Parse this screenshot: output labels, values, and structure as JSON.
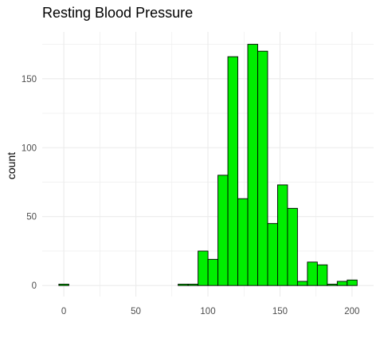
{
  "chart_data": {
    "type": "bar",
    "title": "Resting Blood Pressure",
    "xlabel": "",
    "ylabel": "count",
    "bin_width": 6.9,
    "bins": [
      {
        "start": -3.45,
        "end": 3.45,
        "count": 1
      },
      {
        "start": 79.35,
        "end": 86.25,
        "count": 1
      },
      {
        "start": 86.25,
        "end": 93.15,
        "count": 1
      },
      {
        "start": 93.15,
        "end": 100.05,
        "count": 25
      },
      {
        "start": 100.05,
        "end": 106.95,
        "count": 19
      },
      {
        "start": 106.95,
        "end": 113.85,
        "count": 80
      },
      {
        "start": 113.85,
        "end": 120.75,
        "count": 166
      },
      {
        "start": 120.75,
        "end": 127.65,
        "count": 63
      },
      {
        "start": 127.65,
        "end": 134.55,
        "count": 175
      },
      {
        "start": 134.55,
        "end": 141.45,
        "count": 170
      },
      {
        "start": 141.45,
        "end": 148.35,
        "count": 45
      },
      {
        "start": 148.35,
        "end": 155.25,
        "count": 73
      },
      {
        "start": 155.25,
        "end": 162.15,
        "count": 56
      },
      {
        "start": 162.15,
        "end": 169.05,
        "count": 3
      },
      {
        "start": 169.05,
        "end": 175.95,
        "count": 17
      },
      {
        "start": 175.95,
        "end": 182.85,
        "count": 15
      },
      {
        "start": 182.85,
        "end": 189.75,
        "count": 1
      },
      {
        "start": 189.75,
        "end": 196.65,
        "count": 3
      },
      {
        "start": 196.65,
        "end": 203.55,
        "count": 4
      }
    ],
    "xlim": [
      -15,
      215
    ],
    "ylim": [
      -8,
      184
    ],
    "x_ticks": [
      0,
      50,
      100,
      150,
      200
    ],
    "x_tick_labels": [
      "0",
      "50",
      "100",
      "150",
      "200"
    ],
    "y_ticks": [
      0,
      50,
      100,
      150
    ],
    "y_tick_labels": [
      "0",
      "50",
      "100",
      "150"
    ],
    "grid": true,
    "legend": "none",
    "bar_fill": "#00EE00",
    "bar_stroke": "#000000",
    "grid_color": "#EBEBEB",
    "tick_label_color": "#4D4D4D"
  }
}
